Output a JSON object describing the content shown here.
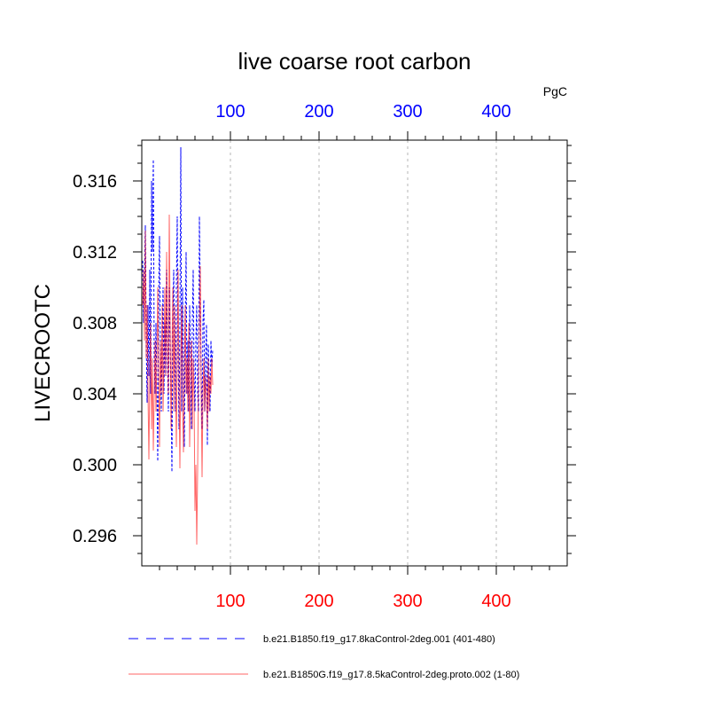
{
  "chart_data": {
    "type": "line",
    "title": "live coarse root carbon",
    "units": "PgC",
    "ylabel": "LIVECROOTC",
    "xlabel": "",
    "xlim": [
      0,
      480
    ],
    "ylim": [
      0.2943,
      0.3183
    ],
    "xticks": [
      100,
      200,
      300,
      400
    ],
    "yticks": [
      0.296,
      0.3,
      0.304,
      0.308,
      0.312,
      0.316
    ],
    "ytick_labels": [
      "0.296",
      "0.300",
      "0.304",
      "0.308",
      "0.312",
      "0.316"
    ],
    "xtick_labels": [
      "100",
      "200",
      "300",
      "400"
    ],
    "grid": "x-dashed",
    "colors": {
      "top_axis_labels": "#0000ff",
      "bottom_axis_labels": "#ff0000"
    },
    "legend": [
      {
        "name": "b.e21.B1850.f19_g17.8kaControl-2deg.001 (401-480)",
        "color": "#0000ff",
        "dash": "dashed"
      },
      {
        "name": "b.e21.B1850G.f19_g17.8.5kaControl-2deg.proto.002 (1-80)",
        "color": "#ff0000",
        "dash": "solid"
      }
    ],
    "series": [
      {
        "name": "b.e21.B1850.f19_g17.8kaControl-2deg.001 (401-480)",
        "color": "#0000ff",
        "x": [
          1,
          2,
          3,
          4,
          5,
          6,
          7,
          8,
          9,
          10,
          11,
          12,
          13,
          14,
          15,
          16,
          17,
          18,
          19,
          20,
          21,
          22,
          23,
          24,
          25,
          26,
          27,
          28,
          29,
          30,
          31,
          32,
          33,
          34,
          35,
          36,
          37,
          38,
          39,
          40,
          41,
          42,
          43,
          44,
          45,
          46,
          47,
          48,
          49,
          50,
          51,
          52,
          53,
          54,
          55,
          56,
          57,
          58,
          59,
          60,
          61,
          62,
          63,
          64,
          65,
          66,
          67,
          68,
          69,
          70,
          71,
          72,
          73,
          74,
          75,
          76,
          77,
          78,
          79,
          80
        ],
        "y": [
          0.3115,
          0.308,
          0.3105,
          0.3135,
          0.307,
          0.3035,
          0.309,
          0.305,
          0.311,
          0.304,
          0.316,
          0.312,
          0.3172,
          0.306,
          0.304,
          0.308,
          0.3045,
          0.3002,
          0.3095,
          0.3129,
          0.306,
          0.303,
          0.307,
          0.31,
          0.304,
          0.308,
          0.305,
          0.311,
          0.306,
          0.303,
          0.31,
          0.307,
          0.304,
          0.2996,
          0.308,
          0.311,
          0.306,
          0.303,
          0.31,
          0.314,
          0.306,
          0.302,
          0.308,
          0.3179,
          0.303,
          0.31,
          0.305,
          0.301,
          0.308,
          0.312,
          0.304,
          0.307,
          0.303,
          0.309,
          0.306,
          0.302,
          0.308,
          0.311,
          0.305,
          0.303,
          0.307,
          0.309,
          0.304,
          0.303,
          0.314,
          0.309,
          0.305,
          0.302,
          0.308,
          0.3093,
          0.303,
          0.306,
          0.3079,
          0.3011,
          0.3068,
          0.305,
          0.303,
          0.307,
          0.3055,
          0.3065
        ]
      },
      {
        "name": "b.e21.B1850G.f19_g17.8.5kaControl-2deg.proto.002 (1-80)",
        "color": "#ff0000",
        "x": [
          1,
          2,
          3,
          4,
          5,
          6,
          7,
          8,
          9,
          10,
          11,
          12,
          13,
          14,
          15,
          16,
          17,
          18,
          19,
          20,
          21,
          22,
          23,
          24,
          25,
          26,
          27,
          28,
          29,
          30,
          31,
          32,
          33,
          34,
          35,
          36,
          37,
          38,
          39,
          40,
          41,
          42,
          43,
          44,
          45,
          46,
          47,
          48,
          49,
          50,
          51,
          52,
          53,
          54,
          55,
          56,
          57,
          58,
          59,
          60,
          61,
          62,
          63,
          64,
          65,
          66,
          67,
          68,
          69,
          70,
          71,
          72,
          73,
          74,
          75,
          76,
          77,
          78,
          79,
          80
        ],
        "y": [
          0.309,
          0.311,
          0.307,
          0.3132,
          0.306,
          0.309,
          0.304,
          0.3003,
          0.305,
          0.308,
          0.302,
          0.306,
          0.3008,
          0.304,
          0.307,
          0.303,
          0.306,
          0.31,
          0.305,
          0.301,
          0.307,
          0.304,
          0.309,
          0.303,
          0.306,
          0.31,
          0.305,
          0.312,
          0.307,
          0.304,
          0.3141,
          0.308,
          0.302,
          0.306,
          0.31,
          0.303,
          0.309,
          0.305,
          0.301,
          0.307,
          0.311,
          0.304,
          0.2998,
          0.306,
          0.309,
          0.303,
          0.3007,
          0.306,
          0.309,
          0.304,
          0.306,
          0.303,
          0.308,
          0.301,
          0.305,
          0.307,
          0.302,
          0.306,
          0.304,
          0.2974,
          0.3,
          0.2955,
          0.2997,
          0.305,
          0.308,
          0.3112,
          0.304,
          0.2993,
          0.304,
          0.306,
          0.303,
          0.305,
          0.304,
          0.302,
          0.306,
          0.303,
          0.305,
          0.304,
          0.306,
          0.3045
        ]
      }
    ]
  }
}
